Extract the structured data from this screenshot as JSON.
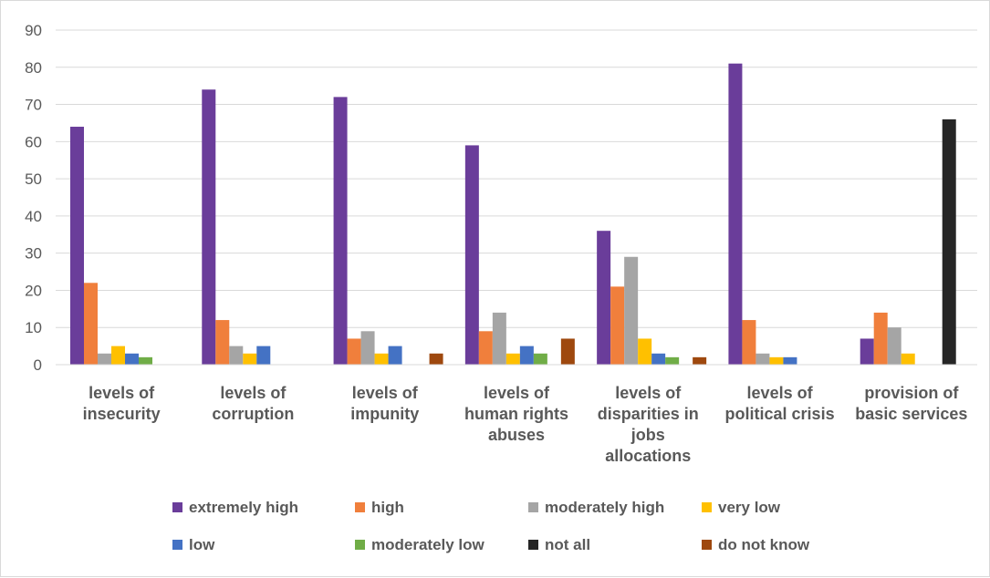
{
  "chart_data": {
    "type": "bar",
    "title": "",
    "xlabel": "",
    "ylabel": "",
    "ylim": [
      0,
      90
    ],
    "yticks": [
      0,
      10,
      20,
      30,
      40,
      50,
      60,
      70,
      80,
      90
    ],
    "grid": true,
    "legend_position": "bottom",
    "categories": [
      [
        "levels of",
        "insecurity"
      ],
      [
        "levels of",
        "corruption"
      ],
      [
        "levels of",
        "impunity"
      ],
      [
        "levels of",
        "human rights",
        "abuses"
      ],
      [
        "levels of",
        "disparities in",
        "jobs",
        "allocations"
      ],
      [
        "levels of",
        "political crisis"
      ],
      [
        "provision of",
        "basic services"
      ]
    ],
    "series": [
      {
        "name": "extremely high",
        "color": "#6a3d9a",
        "values": [
          64,
          74,
          72,
          59,
          36,
          81,
          7
        ]
      },
      {
        "name": "high",
        "color": "#f07f3c",
        "values": [
          22,
          12,
          7,
          9,
          21,
          12,
          14
        ]
      },
      {
        "name": "moderately high",
        "color": "#a5a5a5",
        "values": [
          3,
          5,
          9,
          14,
          29,
          3,
          10
        ]
      },
      {
        "name": "very low",
        "color": "#ffc000",
        "values": [
          5,
          3,
          3,
          3,
          7,
          2,
          3
        ]
      },
      {
        "name": "low",
        "color": "#4472c4",
        "values": [
          3,
          5,
          5,
          5,
          3,
          2,
          0
        ]
      },
      {
        "name": "moderately low",
        "color": "#70ad47",
        "values": [
          2,
          0,
          0,
          3,
          2,
          0,
          0
        ]
      },
      {
        "name": "not all",
        "color": "#262626",
        "values": [
          0,
          0,
          0,
          0,
          0,
          0,
          66
        ]
      },
      {
        "name": "do not know",
        "color": "#9e480e",
        "values": [
          0,
          0,
          3,
          7,
          2,
          0,
          0
        ]
      }
    ]
  }
}
